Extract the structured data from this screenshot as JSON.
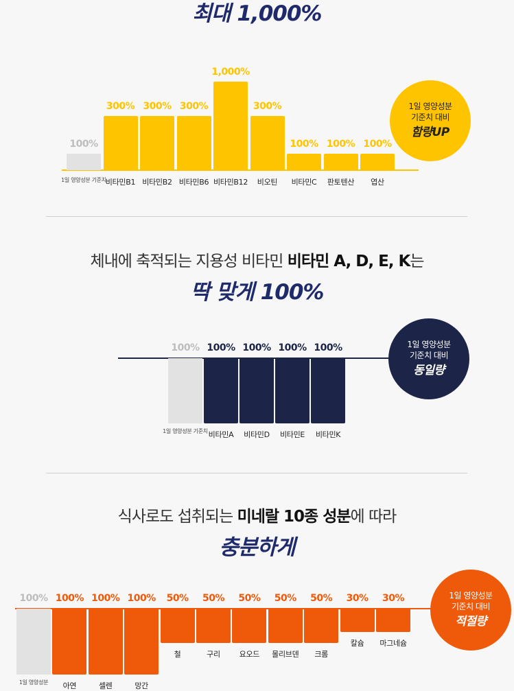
{
  "section1": {
    "headline": "최대 1,000%",
    "badge": {
      "line1": "1일 영양성분",
      "line2": "기준치 대비",
      "line3": "함량UP"
    }
  },
  "section2": {
    "subline_pre": "체내에 축적되는 지용성 비타민 ",
    "subline_bold": "비타민 A, D, E, K",
    "subline_post": "는",
    "headline": "딱 맞게 100%",
    "badge": {
      "line1": "1일 영양성분",
      "line2": "기준치 대비",
      "line3": "동일량"
    }
  },
  "section3": {
    "subline_pre": "식사로도 섭취되는 ",
    "subline_bold1": "미네랄 10종 성분",
    "subline_mid": "에 따라",
    "headline": "충분하게",
    "badge": {
      "line1": "1일 영양성분",
      "line2": "기준치 대비",
      "line3": "적절량"
    }
  },
  "colors": {
    "yellow": "#ffc400",
    "navy": "#1c2447",
    "orange": "#ee5a0a",
    "reference_gray": "#e2e2e2",
    "headline": "#1f2a6b"
  },
  "chart_data": [
    {
      "type": "bar",
      "categories": [
        "1일 영양성분 기준치",
        "비타민B1",
        "비타민B2",
        "비타민B6",
        "비타민B12",
        "비오틴",
        "비타민C",
        "판토텐산",
        "엽산"
      ],
      "values": [
        100,
        300,
        300,
        300,
        1000,
        300,
        100,
        100,
        100
      ],
      "value_labels": [
        "100%",
        "300%",
        "300%",
        "300%",
        "1,000%",
        "300%",
        "100%",
        "100%",
        "100%"
      ]
    },
    {
      "type": "bar",
      "categories": [
        "1일 영양성분 기준치",
        "비타민A",
        "비타민D",
        "비타민E",
        "비타민K"
      ],
      "values": [
        100,
        100,
        100,
        100,
        100
      ],
      "value_labels": [
        "100%",
        "100%",
        "100%",
        "100%",
        "100%"
      ]
    },
    {
      "type": "bar",
      "categories": [
        "1일 영양성분",
        "아연",
        "셀렌",
        "망간",
        "철",
        "구리",
        "요오드",
        "몰리브덴",
        "크롬",
        "칼슘",
        "마그네슘"
      ],
      "values": [
        100,
        100,
        100,
        100,
        50,
        50,
        50,
        50,
        50,
        30,
        30
      ],
      "value_labels": [
        "100%",
        "100%",
        "100%",
        "100%",
        "50%",
        "50%",
        "50%",
        "50%",
        "50%",
        "30%",
        "30%"
      ]
    }
  ]
}
